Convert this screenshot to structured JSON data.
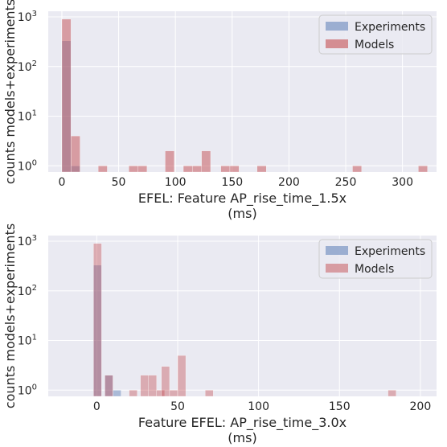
{
  "colors": {
    "experiments": "#4c72b0",
    "models": "#c44e52",
    "panel": "#eaeaf2",
    "grid": "#ffffff"
  },
  "chart_data": [
    {
      "type": "bar",
      "log_y": true,
      "grid": true,
      "legend_position": "top-right",
      "ylabel": "counts models+experiments",
      "xlabel_line1": "EFEL: Feature AP_rise_time_1.5x",
      "xlabel_line2": "(ms)",
      "xlim": [
        -12,
        330
      ],
      "ylim": [
        0.75,
        1300
      ],
      "xticks": [
        0,
        50,
        100,
        150,
        200,
        250,
        300
      ],
      "yticks": [
        {
          "value": 1,
          "base": "10",
          "exp": "0"
        },
        {
          "value": 10,
          "base": "10",
          "exp": "1"
        },
        {
          "value": 100,
          "base": "10",
          "exp": "2"
        },
        {
          "value": 1000,
          "base": "10",
          "exp": "3"
        }
      ],
      "series": [
        {
          "name": "Experiments",
          "color": "#4c72b0",
          "alpha": 0.4,
          "bars": [
            {
              "x0": 0,
              "x1": 8,
              "count": 330
            },
            {
              "x0": 8,
              "x1": 16,
              "count": 1
            }
          ]
        },
        {
          "name": "Models",
          "color": "#c44e52",
          "alpha": 0.5,
          "bars": [
            {
              "x0": 0,
              "x1": 8,
              "count": 900
            },
            {
              "x0": 8,
              "x1": 16,
              "count": 4
            },
            {
              "x0": 32,
              "x1": 40,
              "count": 1
            },
            {
              "x0": 59,
              "x1": 67,
              "count": 1
            },
            {
              "x0": 67,
              "x1": 75,
              "count": 1
            },
            {
              "x0": 91,
              "x1": 99,
              "count": 2
            },
            {
              "x0": 107,
              "x1": 115,
              "count": 1
            },
            {
              "x0": 115,
              "x1": 123,
              "count": 1
            },
            {
              "x0": 123,
              "x1": 131,
              "count": 2
            },
            {
              "x0": 140,
              "x1": 148,
              "count": 1
            },
            {
              "x0": 148,
              "x1": 156,
              "count": 1
            },
            {
              "x0": 172,
              "x1": 180,
              "count": 1
            },
            {
              "x0": 256,
              "x1": 264,
              "count": 1
            },
            {
              "x0": 314,
              "x1": 322,
              "count": 1
            }
          ]
        }
      ]
    },
    {
      "type": "bar",
      "log_y": true,
      "grid": true,
      "legend_position": "top-right",
      "ylabel": "counts models+experiments",
      "xlabel_line1": "Feature EFEL: AP_rise_time_3.0x",
      "xlabel_line2": "(ms)",
      "xlim": [
        -30,
        210
      ],
      "ylim": [
        0.75,
        1300
      ],
      "xticks": [
        0,
        50,
        100,
        150,
        200
      ],
      "yticks": [
        {
          "value": 1,
          "base": "10",
          "exp": "0"
        },
        {
          "value": 10,
          "base": "10",
          "exp": "1"
        },
        {
          "value": 100,
          "base": "10",
          "exp": "2"
        },
        {
          "value": 1000,
          "base": "10",
          "exp": "3"
        }
      ],
      "series": [
        {
          "name": "Experiments",
          "color": "#4c72b0",
          "alpha": 0.4,
          "bars": [
            {
              "x0": -2,
              "x1": 3,
              "count": 330
            },
            {
              "x0": 5,
              "x1": 10,
              "count": 2
            },
            {
              "x0": 10,
              "x1": 15,
              "count": 1
            }
          ]
        },
        {
          "name": "Models",
          "color": "#c44e52",
          "alpha": 0.4,
          "bars": [
            {
              "x0": -2,
              "x1": 3,
              "count": 900
            },
            {
              "x0": 5,
              "x1": 10,
              "count": 2
            },
            {
              "x0": 20,
              "x1": 25,
              "count": 1
            },
            {
              "x0": 27,
              "x1": 32,
              "count": 2
            },
            {
              "x0": 32,
              "x1": 37,
              "count": 2
            },
            {
              "x0": 37,
              "x1": 42,
              "count": 1
            },
            {
              "x0": 40,
              "x1": 45,
              "count": 3
            },
            {
              "x0": 45,
              "x1": 50,
              "count": 1
            },
            {
              "x0": 50,
              "x1": 55,
              "count": 5
            },
            {
              "x0": 67,
              "x1": 72,
              "count": 1
            },
            {
              "x0": 180,
              "x1": 185,
              "count": 1
            }
          ]
        }
      ]
    }
  ]
}
